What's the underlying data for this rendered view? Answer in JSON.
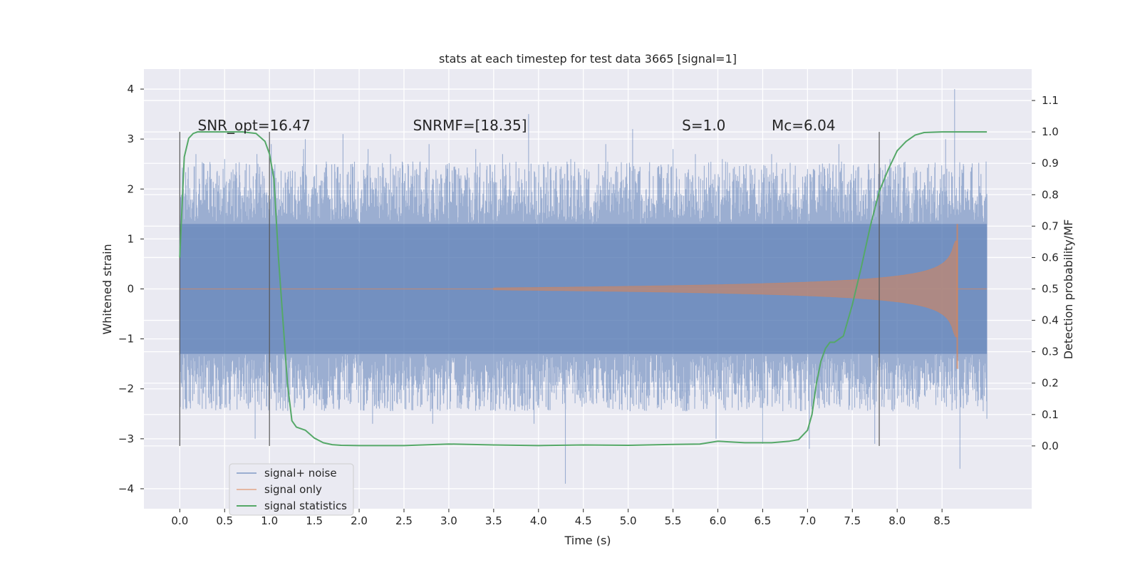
{
  "chart_data": {
    "type": "line",
    "title": "stats at each timestep for test data 3665 [signal=1]",
    "xlabel": "Time (s)",
    "ylabel": "Whitened strain",
    "y2label": "Detection probability/MF",
    "xlim": [
      -0.4,
      9.5
    ],
    "ylim": [
      -4.4,
      4.4
    ],
    "y2lim": [
      -0.2,
      1.2
    ],
    "x_ticks": [
      0.0,
      0.5,
      1.0,
      1.5,
      2.0,
      2.5,
      3.0,
      3.5,
      4.0,
      4.5,
      5.0,
      5.5,
      6.0,
      6.5,
      7.0,
      7.5,
      8.0,
      8.5
    ],
    "x_tick_labels": [
      "0.0",
      "0.5",
      "1.0",
      "1.5",
      "2.0",
      "2.5",
      "3.0",
      "3.5",
      "4.0",
      "4.5",
      "5.0",
      "5.5",
      "6.0",
      "6.5",
      "7.0",
      "7.5",
      "8.0",
      "8.5"
    ],
    "y_ticks": [
      4,
      3,
      2,
      1,
      0,
      -1,
      -2,
      -3,
      -4
    ],
    "y_tick_labels": [
      "4",
      "3",
      "2",
      "1",
      "0",
      "−1",
      "−2",
      "−3",
      "−4"
    ],
    "y2_ticks": [
      1.1,
      1.0,
      0.9,
      0.8,
      0.7,
      0.6,
      0.5,
      0.4,
      0.3,
      0.2,
      0.1,
      0.0
    ],
    "y2_tick_labels": [
      "1.1",
      "1.0",
      "0.9",
      "0.8",
      "0.7",
      "0.6",
      "0.5",
      "0.4",
      "0.3",
      "0.2",
      "0.1",
      "0.0"
    ],
    "annotations": [
      {
        "text": "SNR_opt=16.47",
        "x": 0.2
      },
      {
        "text": "SNRMF=[18.35]",
        "x": 2.6
      },
      {
        "text": "S=1.0",
        "x": 5.6
      },
      {
        "text": "Mc=6.04",
        "x": 6.6
      }
    ],
    "vertical_markers": [
      0.0,
      1.0,
      7.8
    ],
    "legend": {
      "position": "lower-left",
      "entries": [
        "signal+ noise",
        "signal only",
        "signal statistics"
      ]
    },
    "series": [
      {
        "name": "signal+ noise",
        "axis": "left",
        "color": "#4c72b0",
        "t_range": [
          0.0,
          9.0
        ],
        "band_envelope": {
          "t": [
            0.0,
            9.0
          ],
          "upper": [
            1.3,
            1.3
          ],
          "lower": [
            -1.3,
            -1.3
          ]
        },
        "peaks": [
          [
            0.04,
            2.0
          ],
          [
            0.18,
            2.7
          ],
          [
            0.25,
            -2.4
          ],
          [
            0.34,
            2.5
          ],
          [
            0.5,
            2.6
          ],
          [
            0.55,
            -2.3
          ],
          [
            0.86,
            2.7
          ],
          [
            0.84,
            -3.0
          ],
          [
            1.02,
            2.9
          ],
          [
            1.15,
            -1.8
          ],
          [
            1.38,
            2.8
          ],
          [
            1.4,
            3.0
          ],
          [
            1.62,
            -2.0
          ],
          [
            1.82,
            3.1
          ],
          [
            2.1,
            2.8
          ],
          [
            2.15,
            -2.7
          ],
          [
            2.35,
            2.7
          ],
          [
            2.6,
            2.5
          ],
          [
            2.78,
            2.9
          ],
          [
            2.82,
            -2.7
          ],
          [
            3.3,
            2.8
          ],
          [
            3.6,
            2.7
          ],
          [
            3.89,
            3.5
          ],
          [
            3.95,
            -2.7
          ],
          [
            4.3,
            -3.9
          ],
          [
            4.36,
            2.6
          ],
          [
            4.75,
            2.9
          ],
          [
            5.05,
            3.2
          ],
          [
            5.12,
            -2.4
          ],
          [
            5.5,
            2.8
          ],
          [
            5.6,
            -2.2
          ],
          [
            5.75,
            2.7
          ],
          [
            5.98,
            -3.0
          ],
          [
            6.05,
            2.6
          ],
          [
            6.5,
            -3.1
          ],
          [
            6.6,
            2.7
          ],
          [
            7.0,
            2.4
          ],
          [
            7.02,
            -3.2
          ],
          [
            7.35,
            2.9
          ],
          [
            7.75,
            -3.1
          ],
          [
            7.92,
            2.6
          ],
          [
            8.35,
            2.5
          ],
          [
            8.54,
            3.0
          ],
          [
            8.64,
            4.0
          ],
          [
            8.7,
            -3.6
          ],
          [
            9.0,
            1.9
          ],
          [
            9.0,
            -2.6
          ]
        ]
      },
      {
        "name": "signal only",
        "axis": "left",
        "color": "#dd8452",
        "chirp": {
          "t_start": 3.5,
          "t_merge": 8.67,
          "amplitude_at_start": 0.02,
          "amplitude_peak": 1.3
        }
      },
      {
        "name": "signal statistics",
        "axis": "right",
        "color": "#55a868",
        "x": [
          0.0,
          0.05,
          0.1,
          0.15,
          0.2,
          0.3,
          0.5,
          0.7,
          0.85,
          0.95,
          1.0,
          1.05,
          1.1,
          1.15,
          1.2,
          1.25,
          1.3,
          1.4,
          1.5,
          1.6,
          1.7,
          1.8,
          2.0,
          2.5,
          3.0,
          3.5,
          4.0,
          4.5,
          5.0,
          5.5,
          5.8,
          6.0,
          6.3,
          6.6,
          6.8,
          6.9,
          7.0,
          7.05,
          7.1,
          7.15,
          7.2,
          7.25,
          7.3,
          7.4,
          7.5,
          7.6,
          7.7,
          7.8,
          7.9,
          8.0,
          8.1,
          8.2,
          8.3,
          8.5,
          8.8,
          9.0
        ],
        "values": [
          0.6,
          0.92,
          0.98,
          0.995,
          1.0,
          1.0,
          1.0,
          1.0,
          0.995,
          0.97,
          0.93,
          0.85,
          0.6,
          0.4,
          0.2,
          0.08,
          0.06,
          0.05,
          0.025,
          0.01,
          0.004,
          0.002,
          0.001,
          0.001,
          0.006,
          0.003,
          0.001,
          0.003,
          0.002,
          0.005,
          0.006,
          0.015,
          0.01,
          0.01,
          0.015,
          0.02,
          0.05,
          0.1,
          0.2,
          0.27,
          0.31,
          0.33,
          0.33,
          0.35,
          0.45,
          0.57,
          0.7,
          0.81,
          0.88,
          0.94,
          0.97,
          0.99,
          0.998,
          1.0,
          1.0,
          1.0
        ]
      }
    ]
  }
}
